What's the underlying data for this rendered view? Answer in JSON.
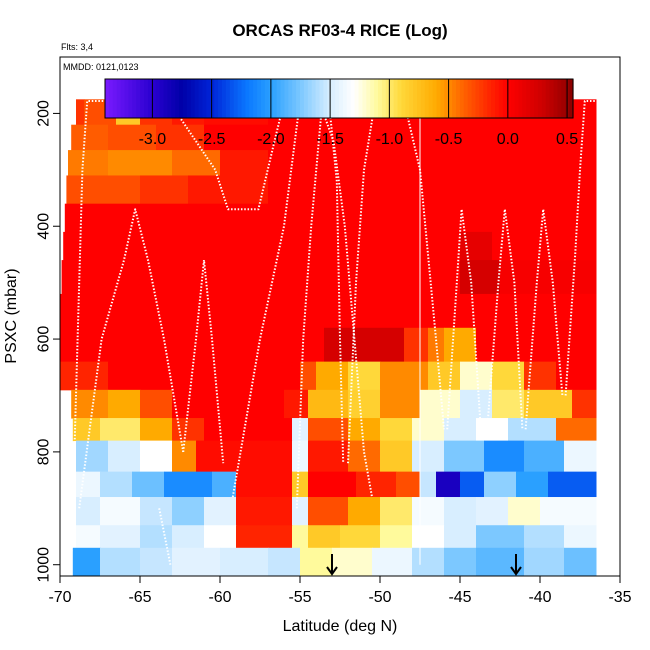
{
  "chart_data": {
    "type": "heatmap",
    "title": "ORCAS RF03-4 RICE (Log)",
    "flights_label": "Flts: 3,4",
    "dates_label": "MMDD: 0121,0123",
    "xlabel": "Latitude (deg N)",
    "ylabel": "PSXC (mbar)",
    "xlim": [
      -70,
      -35
    ],
    "ylim": [
      1020,
      100
    ],
    "xticks": [
      -70,
      -65,
      -60,
      -55,
      -50,
      -45,
      -40,
      -35
    ],
    "yticks": [
      200,
      400,
      600,
      800,
      1000
    ],
    "colorbar": {
      "range": [
        -3.4,
        0.55
      ],
      "ticks": [
        -3.0,
        -2.5,
        -2.0,
        -1.5,
        -1.0,
        -0.5,
        0.0,
        0.5
      ],
      "stops": [
        {
          "v": -3.4,
          "c": "#7a1aff"
        },
        {
          "v": -3.0,
          "c": "#2a00d0"
        },
        {
          "v": -2.75,
          "c": "#0000a8"
        },
        {
          "v": -2.5,
          "c": "#0024d8"
        },
        {
          "v": -2.2,
          "c": "#0a78ff"
        },
        {
          "v": -2.0,
          "c": "#2aa0ff"
        },
        {
          "v": -1.75,
          "c": "#7cc8ff"
        },
        {
          "v": -1.5,
          "c": "#d8eeff"
        },
        {
          "v": -1.3,
          "c": "#ffffff"
        },
        {
          "v": -1.1,
          "c": "#fffa9c"
        },
        {
          "v": -0.9,
          "c": "#ffd83a"
        },
        {
          "v": -0.6,
          "c": "#ffaa00"
        },
        {
          "v": -0.4,
          "c": "#ff6a00"
        },
        {
          "v": -0.15,
          "c": "#ff2400"
        },
        {
          "v": 0.0,
          "c": "#ff0000"
        },
        {
          "v": 0.3,
          "c": "#cc0000"
        },
        {
          "v": 0.55,
          "c": "#8a0000"
        }
      ]
    },
    "data_rows": [
      {
        "pmin": 175,
        "pmax": 220,
        "cells": [
          [
            -69,
            -68.5,
            -0.2
          ],
          [
            -68.5,
            -66.5,
            -0.3
          ],
          [
            -66.5,
            -65,
            -0.8
          ],
          [
            -65,
            -63,
            -0.2
          ],
          [
            -63,
            -61,
            -0.1
          ],
          [
            -61,
            -57,
            -0.05
          ],
          [
            -57,
            -36.5,
            0.0
          ]
        ]
      },
      {
        "pmin": 220,
        "pmax": 265,
        "cells": [
          [
            -69.3,
            -67,
            -0.35
          ],
          [
            -67,
            -64,
            -0.3
          ],
          [
            -64,
            -61,
            -0.2
          ],
          [
            -61,
            -36.5,
            0.0
          ]
        ]
      },
      {
        "pmin": 265,
        "pmax": 310,
        "cells": [
          [
            -69.5,
            -67,
            -0.45
          ],
          [
            -67,
            -63,
            -0.5
          ],
          [
            -63,
            -60,
            -0.4
          ],
          [
            -60,
            -57,
            -0.1
          ],
          [
            -57,
            -36.5,
            0.0
          ]
        ]
      },
      {
        "pmin": 310,
        "pmax": 360,
        "cells": [
          [
            -69.6,
            -65,
            -0.3
          ],
          [
            -65,
            -62,
            -0.2
          ],
          [
            -62,
            -57,
            -0.1
          ],
          [
            -57,
            -36.5,
            0.0
          ]
        ]
      },
      {
        "pmin": 360,
        "pmax": 410,
        "cells": [
          [
            -69.7,
            -36.5,
            0.0
          ]
        ]
      },
      {
        "pmin": 410,
        "pmax": 460,
        "cells": [
          [
            -69.8,
            -45,
            0.0
          ],
          [
            -45,
            -43,
            0.15
          ],
          [
            -43,
            -36.5,
            0.0
          ]
        ]
      },
      {
        "pmin": 460,
        "pmax": 520,
        "cells": [
          [
            -69.9,
            -45,
            0.0
          ],
          [
            -45,
            -42.5,
            0.25
          ],
          [
            -42.5,
            -36.5,
            0.05
          ]
        ]
      },
      {
        "pmin": 520,
        "pmax": 580,
        "cells": [
          [
            -70,
            -36.5,
            0.0
          ]
        ]
      },
      {
        "pmin": 580,
        "pmax": 640,
        "cells": [
          [
            -70,
            -53.5,
            0.0
          ],
          [
            -53.5,
            -48.5,
            0.25
          ],
          [
            -48.5,
            -47,
            -0.2
          ],
          [
            -47,
            -46,
            -0.45
          ],
          [
            -46,
            -44,
            -0.6
          ],
          [
            -44,
            -36.5,
            0.0
          ]
        ]
      },
      {
        "pmin": 640,
        "pmax": 690,
        "cells": [
          [
            -70,
            -67,
            -0.15
          ],
          [
            -67,
            -64,
            0.0
          ],
          [
            -64,
            -55,
            0.0
          ],
          [
            -55,
            -54,
            -0.3
          ],
          [
            -54,
            -52,
            -0.6
          ],
          [
            -52,
            -50,
            -0.9
          ],
          [
            -50,
            -47,
            -0.5
          ],
          [
            -47,
            -45,
            -0.8
          ],
          [
            -45,
            -43,
            -1.2
          ],
          [
            -43,
            -41,
            -0.9
          ],
          [
            -41,
            -39,
            -0.2
          ],
          [
            -39,
            -36.5,
            0.0
          ]
        ]
      },
      {
        "pmin": 690,
        "pmax": 740,
        "cells": [
          [
            -69.3,
            -67,
            -0.5
          ],
          [
            -67,
            -65,
            -0.6
          ],
          [
            -65,
            -63,
            -0.3
          ],
          [
            -63,
            -56,
            0.0
          ],
          [
            -56,
            -54.5,
            -0.1
          ],
          [
            -54.5,
            -52,
            -0.7
          ],
          [
            -52,
            -50,
            -0.85
          ],
          [
            -50,
            -47.5,
            -0.5
          ],
          [
            -47.5,
            -45,
            -1.2
          ],
          [
            -45,
            -43,
            -1.5
          ],
          [
            -43,
            -41,
            -1.0
          ],
          [
            -41,
            -38,
            -0.8
          ],
          [
            -38,
            -36.5,
            -0.2
          ]
        ]
      },
      {
        "pmin": 740,
        "pmax": 780,
        "cells": [
          [
            -69.2,
            -67.5,
            -0.8
          ],
          [
            -67.5,
            -65,
            -1.0
          ],
          [
            -65,
            -63,
            -0.6
          ],
          [
            -63,
            -61,
            -0.2
          ],
          [
            -61,
            -55.5,
            0.0
          ],
          [
            -55.5,
            -54.5,
            -1.45
          ],
          [
            -54.5,
            -52,
            -0.3
          ],
          [
            -52,
            -50,
            -0.6
          ],
          [
            -50,
            -48,
            -0.9
          ],
          [
            -48,
            -46,
            -1.2
          ],
          [
            -46,
            -44,
            -1.5
          ],
          [
            -44,
            -42,
            -1.3
          ],
          [
            -42,
            -39,
            -1.6
          ],
          [
            -39,
            -36.5,
            -0.4
          ]
        ]
      },
      {
        "pmin": 780,
        "pmax": 835,
        "cells": [
          [
            -69,
            -67,
            -1.65
          ],
          [
            -67,
            -65,
            -1.5
          ],
          [
            -65,
            -63,
            -1.3
          ],
          [
            -63,
            -61.5,
            -0.5
          ],
          [
            -61.5,
            -55.5,
            -0.05
          ],
          [
            -55.5,
            -54.5,
            -1.4
          ],
          [
            -54.5,
            -52,
            -0.1
          ],
          [
            -52,
            -50,
            -0.4
          ],
          [
            -50,
            -48,
            -0.8
          ],
          [
            -48,
            -46,
            -1.5
          ],
          [
            -46,
            -43.5,
            -1.75
          ],
          [
            -43.5,
            -41,
            -2.1
          ],
          [
            -41,
            -38.5,
            -1.9
          ],
          [
            -38.5,
            -36.5,
            -1.4
          ]
        ]
      },
      {
        "pmin": 835,
        "pmax": 880,
        "cells": [
          [
            -69,
            -67.5,
            -1.4
          ],
          [
            -67.5,
            -65.5,
            -1.6
          ],
          [
            -65.5,
            -63.5,
            -1.8
          ],
          [
            -63.5,
            -60.5,
            -2.1
          ],
          [
            -60.5,
            -59,
            -1.9
          ],
          [
            -59,
            -55.5,
            -0.05
          ],
          [
            -55.5,
            -54.5,
            -0.8
          ],
          [
            -54.5,
            -51.5,
            0.0
          ],
          [
            -51.5,
            -49,
            -0.15
          ],
          [
            -49,
            -47.5,
            -0.3
          ],
          [
            -47.5,
            -46.5,
            -1.55
          ],
          [
            -46.5,
            -45,
            -2.9
          ],
          [
            -45,
            -43.5,
            -2.3
          ],
          [
            -43.5,
            -41.5,
            -1.7
          ],
          [
            -41.5,
            -39.5,
            -2.0
          ],
          [
            -39.5,
            -36.5,
            -2.3
          ]
        ]
      },
      {
        "pmin": 880,
        "pmax": 930,
        "cells": [
          [
            -69,
            -67.5,
            -1.5
          ],
          [
            -67.5,
            -65,
            -1.35
          ],
          [
            -65,
            -63,
            -1.55
          ],
          [
            -63,
            -61,
            -1.7
          ],
          [
            -61,
            -59,
            -1.45
          ],
          [
            -59,
            -55.5,
            -0.1
          ],
          [
            -55.5,
            -54.5,
            -1.45
          ],
          [
            -54.5,
            -52,
            -0.3
          ],
          [
            -52,
            -50,
            -0.6
          ],
          [
            -50,
            -48,
            -1.0
          ],
          [
            -48,
            -46,
            -1.35
          ],
          [
            -46,
            -44,
            -1.5
          ],
          [
            -44,
            -42,
            -1.45
          ],
          [
            -42,
            -40,
            -1.2
          ],
          [
            -40,
            -36.5,
            -1.35
          ]
        ]
      },
      {
        "pmin": 930,
        "pmax": 970,
        "cells": [
          [
            -69,
            -67.5,
            -1.35
          ],
          [
            -67.5,
            -65,
            -1.45
          ],
          [
            -65,
            -63,
            -1.6
          ],
          [
            -63,
            -61,
            -1.5
          ],
          [
            -61,
            -59,
            -1.3
          ],
          [
            -59,
            -55.5,
            -0.15
          ],
          [
            -55.5,
            -54.5,
            -1.1
          ],
          [
            -54.5,
            -52.5,
            -0.8
          ],
          [
            -52.5,
            -50,
            -0.9
          ],
          [
            -50,
            -48,
            -1.1
          ],
          [
            -48,
            -46,
            -1.3
          ],
          [
            -46,
            -44,
            -1.5
          ],
          [
            -44,
            -41,
            -1.75
          ],
          [
            -41,
            -38.5,
            -1.6
          ],
          [
            -38.5,
            -36.5,
            -1.4
          ]
        ]
      },
      {
        "pmin": 970,
        "pmax": 1020,
        "cells": [
          [
            -69.2,
            -67.5,
            -2.0
          ],
          [
            -67.5,
            -65,
            -1.6
          ],
          [
            -65,
            -63,
            -1.55
          ],
          [
            -63,
            -60,
            -1.45
          ],
          [
            -60,
            -57,
            -1.5
          ],
          [
            -57,
            -55,
            -1.55
          ],
          [
            -55,
            -53,
            -1.1
          ],
          [
            -53,
            -50.5,
            -1.2
          ],
          [
            -50.5,
            -48,
            -1.4
          ],
          [
            -48,
            -46,
            -1.6
          ],
          [
            -46,
            -44,
            -1.75
          ],
          [
            -44,
            -41,
            -1.85
          ],
          [
            -41,
            -38.5,
            -1.65
          ],
          [
            -38.5,
            -36.5,
            -1.8
          ]
        ]
      }
    ],
    "flight_tracks": [
      [
        [
          -69.3,
          1000
        ],
        [
          -68.6,
          300
        ],
        [
          -68.3,
          178
        ],
        [
          -66,
          178
        ],
        [
          -63.2,
          178
        ],
        [
          -60.3,
          300
        ],
        [
          -59.5,
          370
        ],
        [
          -57.6,
          370
        ],
        [
          -56.6,
          250
        ],
        [
          -56,
          180
        ],
        [
          -55,
          178
        ]
      ],
      [
        [
          -68.8,
          900
        ],
        [
          -67.4,
          600
        ],
        [
          -66,
          460
        ],
        [
          -65.3,
          370
        ],
        [
          -64.5,
          460
        ],
        [
          -63.5,
          600
        ],
        [
          -62.3,
          800
        ]
      ],
      [
        [
          -62.3,
          800
        ],
        [
          -61.5,
          600
        ],
        [
          -61,
          460
        ],
        [
          -60.5,
          600
        ],
        [
          -59.8,
          820
        ]
      ],
      [
        [
          -59.2,
          880
        ],
        [
          -57.5,
          600
        ],
        [
          -56,
          400
        ],
        [
          -55,
          178
        ]
      ],
      [
        [
          -58.4,
          178
        ],
        [
          -53.8,
          178
        ],
        [
          -52.9,
          250
        ],
        [
          -52.2,
          400
        ],
        [
          -51.6,
          600
        ],
        [
          -51,
          800
        ],
        [
          -50.5,
          880
        ]
      ],
      [
        [
          -55.2,
          900
        ],
        [
          -54.8,
          600
        ],
        [
          -54.3,
          400
        ],
        [
          -53.6,
          178
        ]
      ],
      [
        [
          -53.2,
          178
        ],
        [
          -52.7,
          320
        ],
        [
          -52.5,
          600
        ],
        [
          -52.3,
          820
        ]
      ],
      [
        [
          -52,
          820
        ],
        [
          -51.5,
          500
        ],
        [
          -51,
          300
        ],
        [
          -50.3,
          178
        ],
        [
          -48.5,
          178
        ],
        [
          -47.5,
          300
        ],
        [
          -46.5,
          600
        ],
        [
          -46,
          760
        ]
      ],
      [
        [
          -45.8,
          760
        ],
        [
          -45.2,
          500
        ],
        [
          -44.9,
          370
        ],
        [
          -44.3,
          500
        ],
        [
          -43.7,
          760
        ]
      ],
      [
        [
          -43.3,
          760
        ],
        [
          -42.6,
          500
        ],
        [
          -42.2,
          370
        ],
        [
          -41.6,
          500
        ],
        [
          -41.1,
          760
        ]
      ],
      [
        [
          -40.9,
          760
        ],
        [
          -40.2,
          500
        ],
        [
          -39.8,
          370
        ],
        [
          -39.2,
          500
        ],
        [
          -38.6,
          700
        ]
      ],
      [
        [
          -38.4,
          700
        ],
        [
          -37.8,
          450
        ],
        [
          -37.5,
          300
        ],
        [
          -37.2,
          178
        ],
        [
          -36.5,
          178
        ]
      ],
      [
        [
          -63.8,
          900
        ],
        [
          -63.1,
          1000
        ]
      ]
    ],
    "vertical_line_lat": -47.5,
    "markers": [
      -53,
      -41.5
    ]
  }
}
